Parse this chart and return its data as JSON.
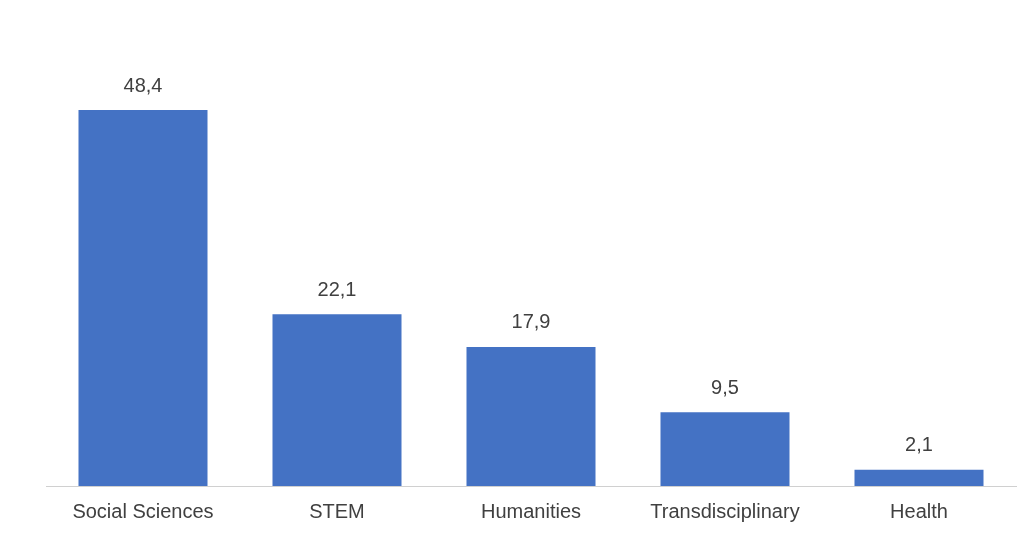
{
  "chart_data": {
    "type": "bar",
    "categories": [
      "Social Sciences",
      "STEM",
      "Humanities",
      "Transdisciplinary",
      "Health"
    ],
    "values": [
      48.4,
      22.1,
      17.9,
      9.5,
      2.1
    ],
    "value_labels": [
      "48,4",
      "22,1",
      "17,9",
      "9,5",
      "2,1"
    ],
    "color": "#4472c4",
    "grid": false,
    "legend": false
  }
}
